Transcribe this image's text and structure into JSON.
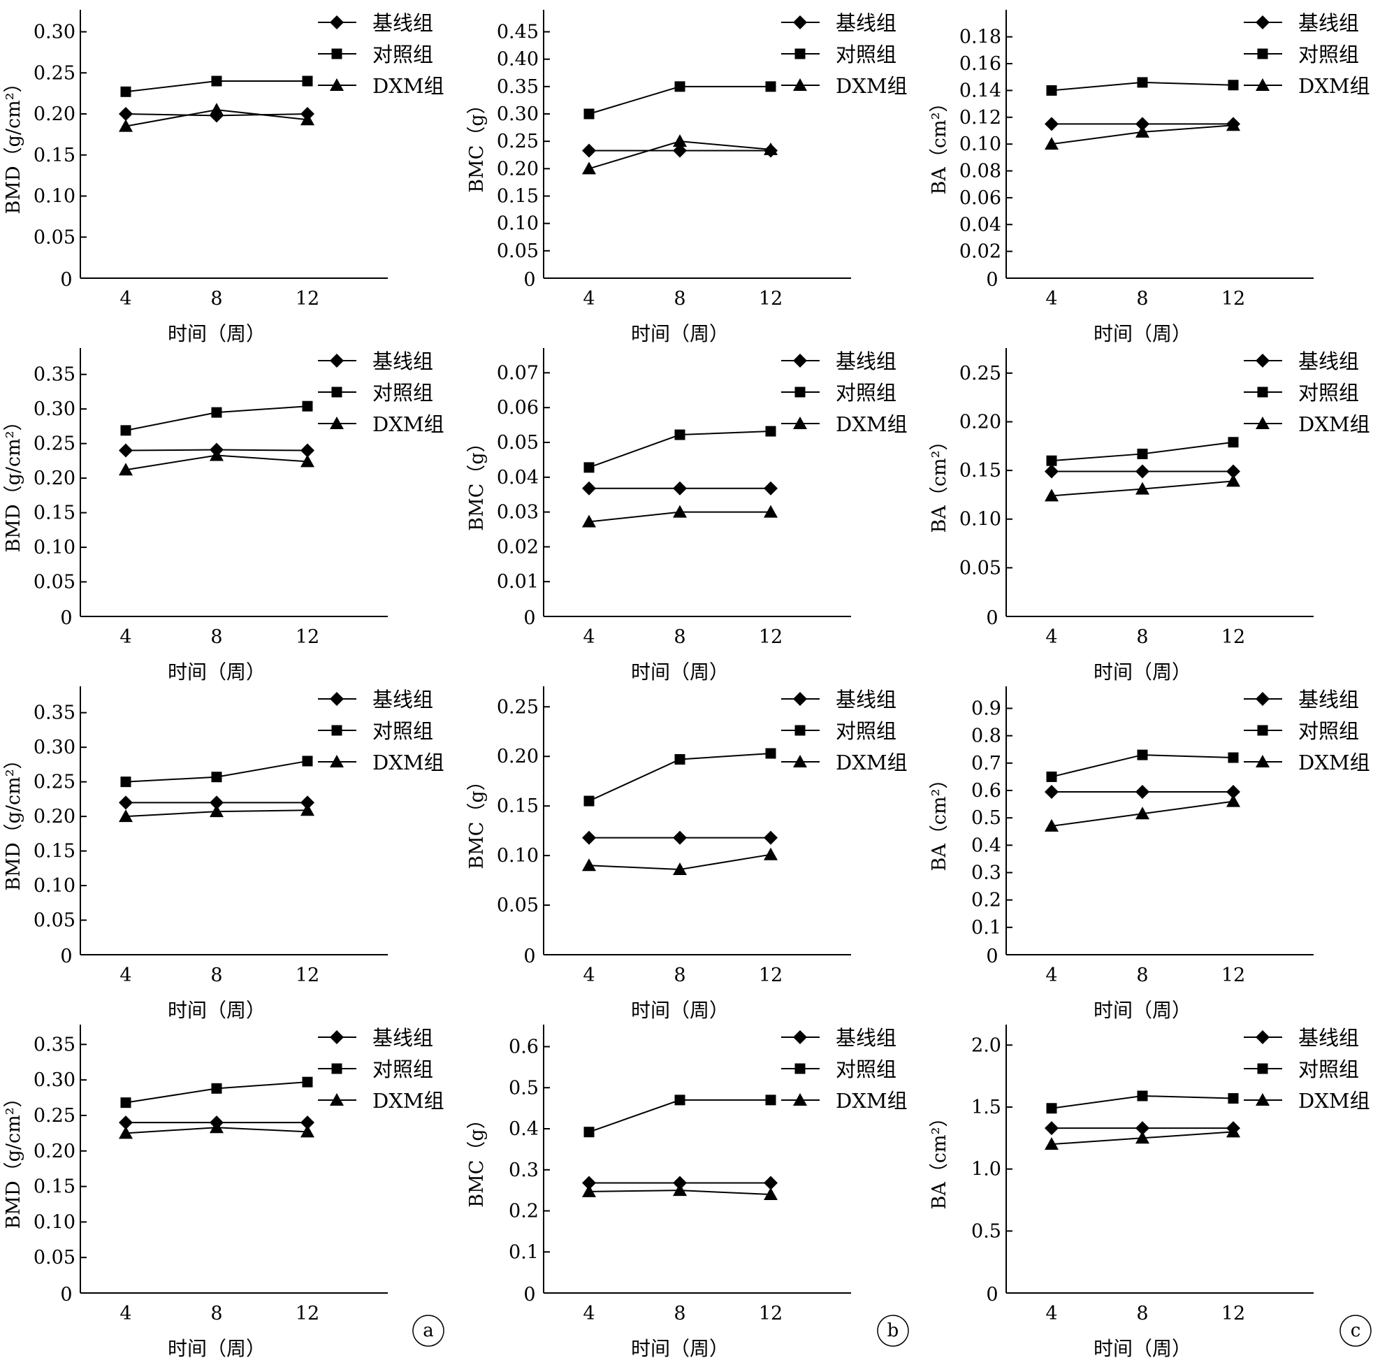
{
  "legend": [
    "基线组",
    "对照组",
    "DXM组"
  ],
  "x_label": "时间（周）",
  "y_labels": {
    "BMD": "BMD（g/cm²）",
    "BMC": "BMC（g）",
    "BA": "BA（cm²）"
  },
  "panel_labels": [
    "a",
    "b",
    "c"
  ],
  "chart_data": [
    {
      "type": "line",
      "row": 0,
      "col": 0,
      "ylabel": "BMD（g/cm²）",
      "xlabel": "时间（周）",
      "categories": [
        4,
        8,
        12
      ],
      "yticks": [
        "0",
        "0.05",
        "0.10",
        "0.15",
        "0.20",
        "0.25",
        "0.30"
      ],
      "ylim": [
        0,
        0.32
      ],
      "series": [
        {
          "name": "基线组",
          "values": [
            0.2,
            0.198,
            0.2
          ]
        },
        {
          "name": "对照组",
          "values": [
            0.227,
            0.24,
            0.24
          ]
        },
        {
          "name": "DXM组",
          "values": [
            0.185,
            0.205,
            0.193
          ]
        }
      ]
    },
    {
      "type": "line",
      "row": 0,
      "col": 1,
      "ylabel": "BMC（g）",
      "xlabel": "时间（周）",
      "categories": [
        4,
        8,
        12
      ],
      "yticks": [
        "0",
        "0.05",
        "0.10",
        "0.15",
        "0.20",
        "0.25",
        "0.30",
        "0.35",
        "0.40",
        "0.45"
      ],
      "ylim": [
        0,
        0.48
      ],
      "series": [
        {
          "name": "基线组",
          "values": [
            0.233,
            0.233,
            0.233
          ]
        },
        {
          "name": "对照组",
          "values": [
            0.3,
            0.35,
            0.35
          ]
        },
        {
          "name": "DXM组",
          "values": [
            0.2,
            0.25,
            0.235
          ]
        }
      ]
    },
    {
      "type": "line",
      "row": 0,
      "col": 2,
      "ylabel": "BA（cm²）",
      "xlabel": "时间（周）",
      "categories": [
        4,
        8,
        12
      ],
      "yticks": [
        "0",
        "0.02",
        "0.04",
        "0.06",
        "0.08",
        "0.10",
        "0.12",
        "0.14",
        "0.16",
        "0.18"
      ],
      "ylim": [
        0,
        0.196
      ],
      "series": [
        {
          "name": "基线组",
          "values": [
            0.115,
            0.115,
            0.115
          ]
        },
        {
          "name": "对照组",
          "values": [
            0.14,
            0.146,
            0.144
          ]
        },
        {
          "name": "DXM组",
          "values": [
            0.1,
            0.109,
            0.114
          ]
        }
      ]
    },
    {
      "type": "line",
      "row": 1,
      "col": 0,
      "ylabel": "BMD（g/cm²）",
      "xlabel": "时间（周）",
      "categories": [
        4,
        8,
        12
      ],
      "yticks": [
        "0",
        "0.05",
        "0.10",
        "0.15",
        "0.20",
        "0.25",
        "0.30",
        "0.35"
      ],
      "ylim": [
        0,
        0.38
      ],
      "series": [
        {
          "name": "基线组",
          "values": [
            0.24,
            0.241,
            0.24
          ]
        },
        {
          "name": "对照组",
          "values": [
            0.269,
            0.295,
            0.304
          ]
        },
        {
          "name": "DXM组",
          "values": [
            0.212,
            0.233,
            0.224
          ]
        }
      ]
    },
    {
      "type": "line",
      "row": 1,
      "col": 1,
      "ylabel": "BMC（g）",
      "xlabel": "时间（周）",
      "categories": [
        4,
        8,
        12
      ],
      "yticks": [
        "0",
        "0.01",
        "0.02",
        "0.03",
        "0.04",
        "0.05",
        "0.06",
        "0.07"
      ],
      "ylim": [
        0,
        0.0755
      ],
      "series": [
        {
          "name": "基线组",
          "values": [
            0.0368,
            0.0368,
            0.0368
          ]
        },
        {
          "name": "对照组",
          "values": [
            0.0428,
            0.0522,
            0.0532
          ]
        },
        {
          "name": "DXM组",
          "values": [
            0.0272,
            0.03,
            0.03
          ]
        }
      ]
    },
    {
      "type": "line",
      "row": 1,
      "col": 2,
      "ylabel": "BA（cm²）",
      "xlabel": "时间（周）",
      "categories": [
        4,
        8,
        12
      ],
      "yticks": [
        "0",
        "0.05",
        "0.10",
        "0.15",
        "0.20",
        "0.25"
      ],
      "ylim": [
        0,
        0.27
      ],
      "series": [
        {
          "name": "基线组",
          "values": [
            0.149,
            0.149,
            0.149
          ]
        },
        {
          "name": "对照组",
          "values": [
            0.16,
            0.167,
            0.179
          ]
        },
        {
          "name": "DXM组",
          "values": [
            0.124,
            0.131,
            0.139
          ]
        }
      ]
    },
    {
      "type": "line",
      "row": 2,
      "col": 0,
      "ylabel": "BMD（g/cm²）",
      "xlabel": "时间（周）",
      "categories": [
        4,
        8,
        12
      ],
      "yticks": [
        "0",
        "0.05",
        "0.10",
        "0.15",
        "0.20",
        "0.25",
        "0.30",
        "0.35"
      ],
      "ylim": [
        0,
        0.38
      ],
      "series": [
        {
          "name": "基线组",
          "values": [
            0.22,
            0.22,
            0.22
          ]
        },
        {
          "name": "对照组",
          "values": [
            0.25,
            0.257,
            0.28
          ]
        },
        {
          "name": "DXM组",
          "values": [
            0.2,
            0.207,
            0.209
          ]
        }
      ]
    },
    {
      "type": "line",
      "row": 2,
      "col": 1,
      "ylabel": "BMC（g）",
      "xlabel": "时间（周）",
      "categories": [
        4,
        8,
        12
      ],
      "yticks": [
        "0",
        "0.05",
        "0.10",
        "0.15",
        "0.20",
        "0.25"
      ],
      "ylim": [
        0,
        0.265
      ],
      "series": [
        {
          "name": "基线组",
          "values": [
            0.118,
            0.118,
            0.118
          ]
        },
        {
          "name": "对照组",
          "values": [
            0.155,
            0.197,
            0.203
          ]
        },
        {
          "name": "DXM组",
          "values": [
            0.09,
            0.086,
            0.101
          ]
        }
      ]
    },
    {
      "type": "line",
      "row": 2,
      "col": 2,
      "ylabel": "BA（cm²）",
      "xlabel": "时间（周）",
      "categories": [
        4,
        8,
        12
      ],
      "yticks": [
        "0",
        "0.1",
        "0.2",
        "0.3",
        "0.4",
        "0.5",
        "0.6",
        "0.7",
        "0.8",
        "0.9"
      ],
      "ylim": [
        0,
        0.96
      ],
      "series": [
        {
          "name": "基线组",
          "values": [
            0.595,
            0.595,
            0.595
          ]
        },
        {
          "name": "对照组",
          "values": [
            0.65,
            0.73,
            0.72
          ]
        },
        {
          "name": "DXM组",
          "values": [
            0.47,
            0.515,
            0.56
          ]
        }
      ]
    },
    {
      "type": "line",
      "row": 3,
      "col": 0,
      "ylabel": "BMD（g/cm²）",
      "xlabel": "时间（周）",
      "categories": [
        4,
        8,
        12
      ],
      "yticks": [
        "0",
        "0.05",
        "0.10",
        "0.15",
        "0.20",
        "0.25",
        "0.30",
        "0.35"
      ],
      "ylim": [
        0,
        0.37
      ],
      "series": [
        {
          "name": "基线组",
          "values": [
            0.24,
            0.24,
            0.24
          ]
        },
        {
          "name": "对照组",
          "values": [
            0.268,
            0.288,
            0.297
          ]
        },
        {
          "name": "DXM组",
          "values": [
            0.225,
            0.233,
            0.227
          ]
        }
      ]
    },
    {
      "type": "line",
      "row": 3,
      "col": 1,
      "ylabel": "BMC（g）",
      "xlabel": "时间（周）",
      "categories": [
        4,
        8,
        12
      ],
      "yticks": [
        "0",
        "0.1",
        "0.2",
        "0.3",
        "0.4",
        "0.5",
        "0.6"
      ],
      "ylim": [
        0,
        0.64
      ],
      "series": [
        {
          "name": "基线组",
          "values": [
            0.268,
            0.268,
            0.268
          ]
        },
        {
          "name": "对照组",
          "values": [
            0.392,
            0.47,
            0.47
          ]
        },
        {
          "name": "DXM组",
          "values": [
            0.247,
            0.25,
            0.24
          ]
        }
      ]
    },
    {
      "type": "line",
      "row": 3,
      "col": 2,
      "ylabel": "BA（cm²）",
      "xlabel": "时间（周）",
      "categories": [
        4,
        8,
        12
      ],
      "yticks": [
        "0",
        "0.5",
        "1.0",
        "1.5",
        "2.0"
      ],
      "ylim": [
        0,
        2.12
      ],
      "series": [
        {
          "name": "基线组",
          "values": [
            1.33,
            1.33,
            1.33
          ]
        },
        {
          "name": "对照组",
          "values": [
            1.49,
            1.59,
            1.57
          ]
        },
        {
          "name": "DXM组",
          "values": [
            1.2,
            1.25,
            1.3
          ]
        }
      ]
    }
  ]
}
